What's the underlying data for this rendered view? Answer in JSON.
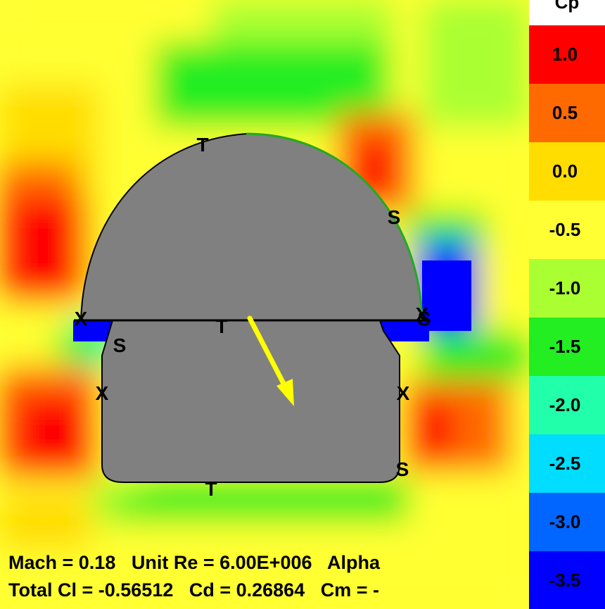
{
  "colorbar": {
    "title": "Cp",
    "levels": [
      {
        "label": "1.0",
        "color": "#ff0000"
      },
      {
        "label": "0.5",
        "color": "#ff6a00"
      },
      {
        "label": "0.0",
        "color": "#ffdd00"
      },
      {
        "label": "-0.5",
        "color": "#ffff33"
      },
      {
        "label": "-1.0",
        "color": "#aaff33"
      },
      {
        "label": "-1.5",
        "color": "#22ee22"
      },
      {
        "label": "-2.0",
        "color": "#22ffaa"
      },
      {
        "label": "-2.5",
        "color": "#00ddff"
      },
      {
        "label": "-3.0",
        "color": "#0066ff"
      },
      {
        "label": "-3.5",
        "color": "#0000ff"
      }
    ]
  },
  "info": {
    "line1": "Mach = 0.18   Unit Re = 6.00E+006   Alpha",
    "line2": "Total Cl = -0.56512   Cd = 0.26864   Cm = -"
  },
  "body_markers": [
    {
      "label": "T"
    },
    {
      "label": "S"
    },
    {
      "label": "X"
    },
    {
      "label": "S"
    },
    {
      "label": "T"
    },
    {
      "label": "X"
    },
    {
      "label": "S"
    },
    {
      "label": "X"
    },
    {
      "label": "X"
    },
    {
      "label": "S"
    },
    {
      "label": "T"
    }
  ],
  "colors": {
    "body_fill": "#808080",
    "force_arrow": "#ffff00",
    "outline": "#000000",
    "pressure_contour_fill": [
      "#ff0000",
      "#ff6a00",
      "#ffdd00",
      "#ffff33",
      "#aaff33",
      "#22ee22",
      "#22ffaa",
      "#00ddff",
      "#0066ff",
      "#0000ff"
    ]
  }
}
